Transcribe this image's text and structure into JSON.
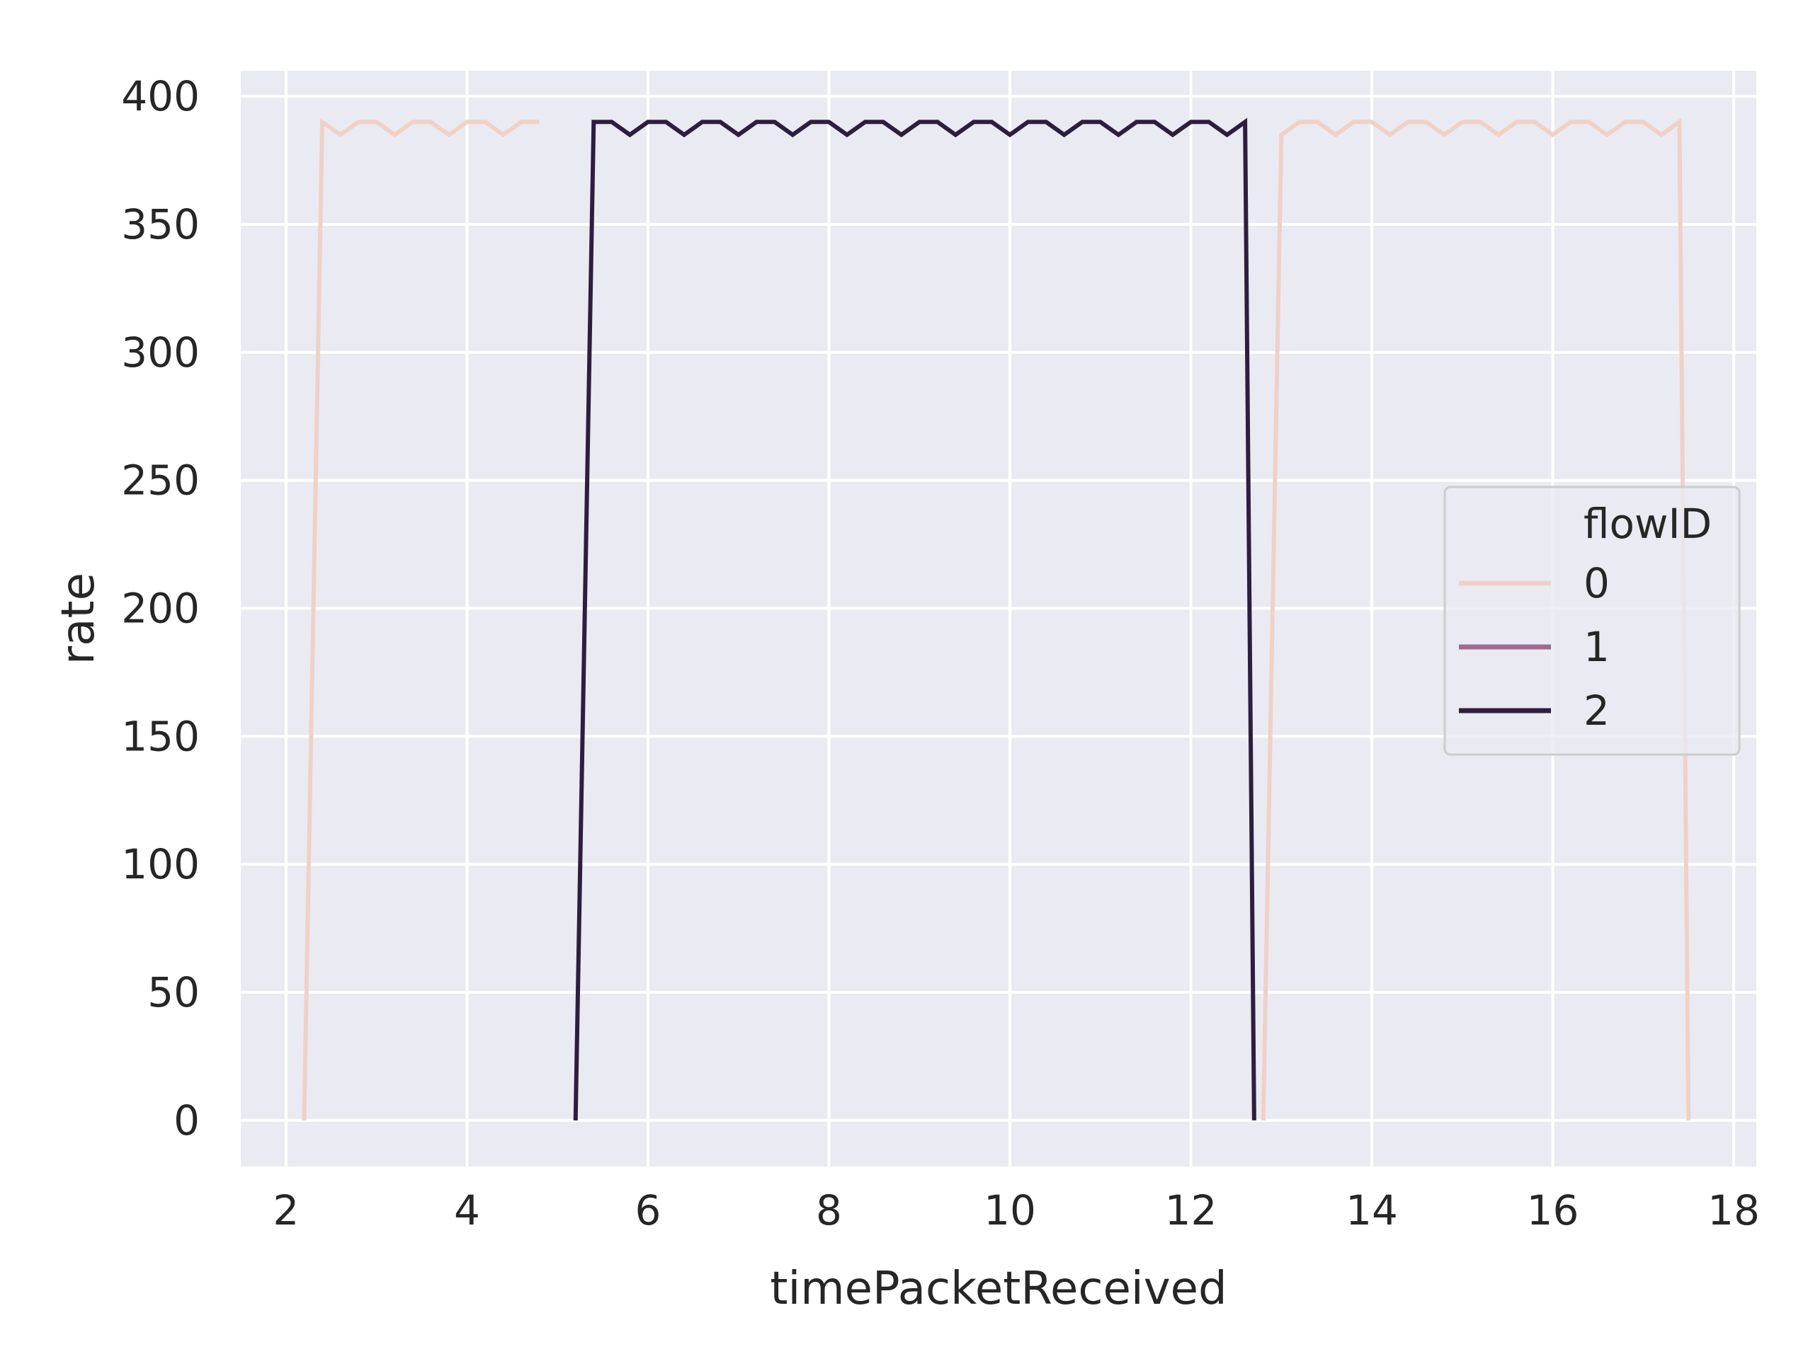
{
  "chart_data": {
    "type": "line",
    "title": "",
    "xlabel": "timePacketReceived",
    "ylabel": "rate",
    "xlim": [
      1.5,
      18.25
    ],
    "ylim": [
      -18,
      410
    ],
    "xticks": [
      2,
      4,
      6,
      8,
      10,
      12,
      14,
      16,
      18
    ],
    "yticks": [
      0,
      50,
      100,
      150,
      200,
      250,
      300,
      350,
      400
    ],
    "grid": true,
    "background": "#eaeaf2",
    "legend": {
      "title": "flowID",
      "placement": "right",
      "entries": [
        {
          "label": "0",
          "color": "#f0d1c8"
        },
        {
          "label": "1",
          "color": "#a06a8e"
        },
        {
          "label": "2",
          "color": "#2d1e3e"
        }
      ]
    },
    "series": [
      {
        "name": "0",
        "color": "#f0d1c8",
        "segments": [
          {
            "x": [
              2.2,
              2.4,
              2.6,
              2.8,
              3.0,
              3.2,
              3.4,
              3.6,
              3.8,
              4.0,
              4.2,
              4.4,
              4.6,
              4.8
            ],
            "y": [
              0,
              390,
              385,
              390,
              390,
              385,
              390,
              390,
              385,
              390,
              390,
              385,
              390,
              390
            ]
          },
          {
            "x": [
              12.8,
              13.0,
              13.2,
              13.4,
              13.6,
              13.8,
              14.0,
              14.2,
              14.4,
              14.6,
              14.8,
              15.0,
              15.2,
              15.4,
              15.6,
              15.8,
              16.0,
              16.2,
              16.4,
              16.6,
              16.8,
              17.0,
              17.2,
              17.4,
              17.5
            ],
            "y": [
              0,
              385,
              390,
              390,
              385,
              390,
              390,
              385,
              390,
              390,
              385,
              390,
              390,
              385,
              390,
              390,
              385,
              390,
              390,
              385,
              390,
              390,
              385,
              390,
              0
            ]
          }
        ]
      },
      {
        "name": "2",
        "color": "#2d1e3e",
        "segments": [
          {
            "x": [
              5.2,
              5.4,
              5.6,
              5.8,
              6.0,
              6.2,
              6.4,
              6.6,
              6.8,
              7.0,
              7.2,
              7.4,
              7.6,
              7.8,
              8.0,
              8.2,
              8.4,
              8.6,
              8.8,
              9.0,
              9.2,
              9.4,
              9.6,
              9.8,
              10.0,
              10.2,
              10.4,
              10.6,
              10.8,
              11.0,
              11.2,
              11.4,
              11.6,
              11.8,
              12.0,
              12.2,
              12.4,
              12.6,
              12.7
            ],
            "y": [
              0,
              390,
              390,
              385,
              390,
              390,
              385,
              390,
              390,
              385,
              390,
              390,
              385,
              390,
              390,
              385,
              390,
              390,
              385,
              390,
              390,
              385,
              390,
              390,
              385,
              390,
              390,
              385,
              390,
              390,
              385,
              390,
              390,
              385,
              390,
              390,
              385,
              390,
              0
            ]
          }
        ]
      }
    ]
  }
}
